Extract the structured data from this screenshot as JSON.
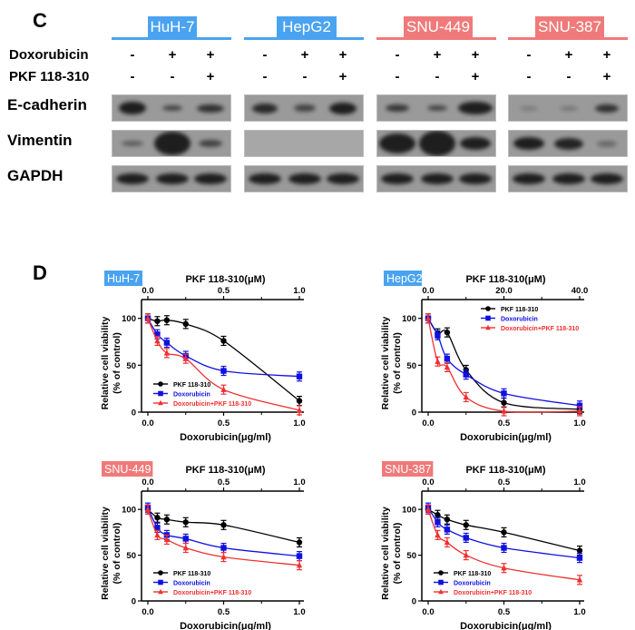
{
  "panel_c": {
    "letter": "C",
    "treatment_rows": [
      {
        "label": "Doxorubicin",
        "signs": [
          "-",
          "+",
          "+"
        ]
      },
      {
        "label": "PKF 118-310",
        "signs": [
          "-",
          "-",
          "+"
        ]
      }
    ],
    "cell_lines": [
      {
        "name": "HuH-7",
        "color": "#4aa3f0",
        "text_color": "#4aa3f0"
      },
      {
        "name": "HepG2",
        "color": "#4aa3f0"
      },
      {
        "name": "SNU-449",
        "color": "#f07a7a"
      },
      {
        "name": "SNU-387",
        "color": "#f07a7a"
      }
    ],
    "blot_rows": [
      "E-cadherin",
      "Vimentin",
      "GAPDH"
    ]
  },
  "panel_d": {
    "letter": "D"
  },
  "chart_data": [
    {
      "type": "line",
      "title": "HuH-7",
      "title_color": "#4aa3f0",
      "top_xlabel": "PKF 118-310(μM)",
      "top_xticks": [
        "0.0",
        "0.5",
        "1.0"
      ],
      "xlabel": "Doxorubicin(μg/ml)",
      "xticks": [
        "0.0",
        "0.5",
        "1.0"
      ],
      "ylabel": "Relative cell viability\n(% of control)",
      "ylabel_line1": "Relative cell viability",
      "ylabel_line2": "(% of control)",
      "yticks": [
        "0",
        "50",
        "100"
      ],
      "ylim": [
        0,
        120
      ],
      "legend_position": "lower-left",
      "x": [
        0,
        0.0625,
        0.125,
        0.25,
        0.5,
        1.0
      ],
      "series": [
        {
          "name": "PKF 118-310",
          "color": "#000000",
          "marker": "circle",
          "values": [
            100,
            97,
            98,
            94,
            76,
            12
          ]
        },
        {
          "name": "Doxorubicin",
          "color": "#1010e0",
          "marker": "square",
          "values": [
            100,
            83,
            74,
            60,
            44,
            38
          ]
        },
        {
          "name": "Doxorubicin+PKF 118-310",
          "color": "#f03030",
          "marker": "triangle",
          "values": [
            100,
            76,
            63,
            57,
            24,
            2
          ]
        }
      ]
    },
    {
      "type": "line",
      "title": "HepG2",
      "title_color": "#4aa3f0",
      "top_xlabel": "PKF 118-310(μM)",
      "top_xticks": [
        "0.0",
        "20.0",
        "40.0"
      ],
      "xlabel": "Doxorubicin(μg/ml)",
      "xticks": [
        "0.0",
        "0.5",
        "1.0"
      ],
      "ylabel_line1": "Relative cell viability",
      "ylabel_line2": "(% of control)",
      "yticks": [
        "0",
        "50",
        "100"
      ],
      "ylim": [
        0,
        120
      ],
      "legend_position": "upper-right",
      "x": [
        0,
        0.0625,
        0.125,
        0.25,
        0.5,
        1.0
      ],
      "series": [
        {
          "name": "PKF 118-310",
          "color": "#000000",
          "marker": "circle",
          "values": [
            100,
            84,
            85,
            45,
            10,
            3
          ]
        },
        {
          "name": "Doxorubicin",
          "color": "#1010e0",
          "marker": "square",
          "values": [
            100,
            82,
            57,
            40,
            20,
            7
          ]
        },
        {
          "name": "Doxorubicin+PKF 118-310",
          "color": "#f03030",
          "marker": "triangle",
          "values": [
            100,
            54,
            48,
            16,
            1,
            1
          ]
        }
      ]
    },
    {
      "type": "line",
      "title": "SNU-449",
      "title_color": "#f07a7a",
      "top_xlabel": "PKF 118-310(μM)",
      "top_xticks": [
        "0.0",
        "0.5",
        "1.0"
      ],
      "xlabel": "Doxorubicin(μg/ml)",
      "xticks": [
        "0.0",
        "0.5",
        "1.0"
      ],
      "ylabel_line1": "Relative cell viability",
      "ylabel_line2": "(% of control)",
      "yticks": [
        "0",
        "50",
        "100"
      ],
      "ylim": [
        0,
        120
      ],
      "legend_position": "lower-left",
      "x": [
        0,
        0.0625,
        0.125,
        0.25,
        0.5,
        1.0
      ],
      "series": [
        {
          "name": "PKF 118-310",
          "color": "#000000",
          "marker": "circle",
          "values": [
            100,
            91,
            89,
            86,
            83,
            64
          ]
        },
        {
          "name": "Doxorubicin",
          "color": "#1010e0",
          "marker": "square",
          "values": [
            102,
            80,
            72,
            68,
            58,
            49
          ]
        },
        {
          "name": "Doxorubicin+PKF 118-310",
          "color": "#f03030",
          "marker": "triangle",
          "values": [
            100,
            72,
            67,
            58,
            48,
            39
          ]
        }
      ]
    },
    {
      "type": "line",
      "title": "SNU-387",
      "title_color": "#f07a7a",
      "top_xlabel": "PKF 118-310(μM)",
      "top_xticks": [
        "0.0",
        "0.5",
        "1.0"
      ],
      "xlabel": "Doxorubicin(μg/ml)",
      "xticks": [
        "0.0",
        "0.5",
        "1.0"
      ],
      "ylabel_line1": "Relative cell viability",
      "ylabel_line2": "(% of control)",
      "yticks": [
        "0",
        "50",
        "100"
      ],
      "ylim": [
        0,
        120
      ],
      "legend_position": "lower-left",
      "x": [
        0,
        0.0625,
        0.125,
        0.25,
        0.5,
        1.0
      ],
      "series": [
        {
          "name": "PKF 118-310",
          "color": "#000000",
          "marker": "circle",
          "values": [
            100,
            94,
            89,
            83,
            75,
            55
          ]
        },
        {
          "name": "Doxorubicin",
          "color": "#1010e0",
          "marker": "square",
          "values": [
            102,
            86,
            78,
            69,
            58,
            47
          ]
        },
        {
          "name": "Doxorubicin+PKF 118-310",
          "color": "#f03030",
          "marker": "triangle",
          "values": [
            100,
            72,
            64,
            50,
            36,
            23
          ]
        }
      ]
    }
  ]
}
